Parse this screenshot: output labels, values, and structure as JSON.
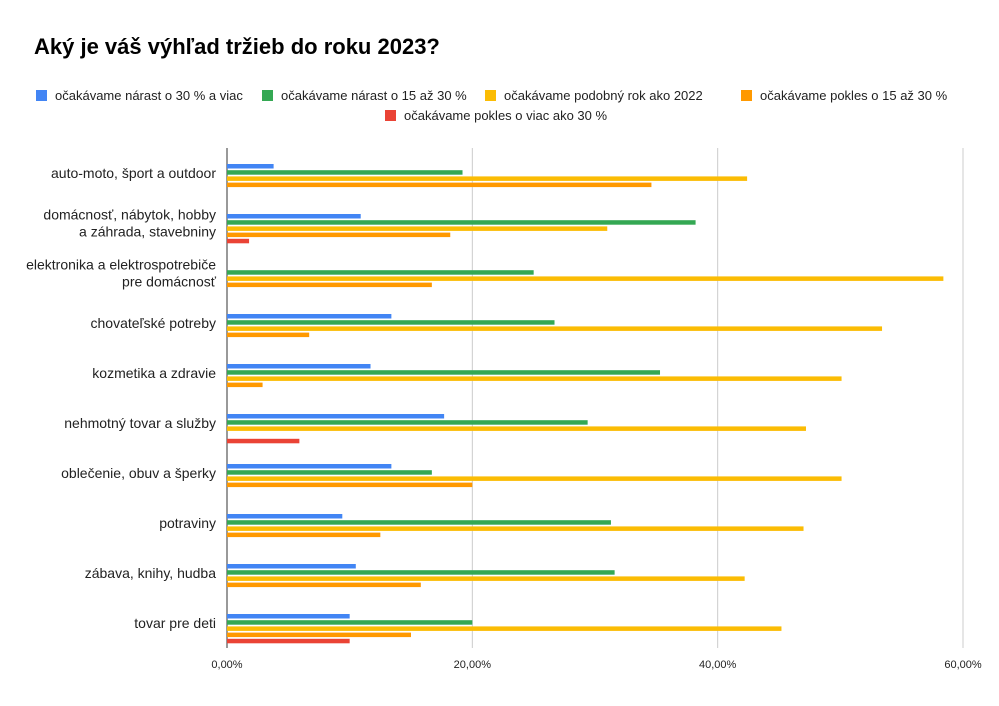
{
  "chart_data": {
    "type": "bar",
    "orientation": "horizontal",
    "title": "Aký je váš výhľad tržieb do roku 2023?",
    "xlabel": "",
    "ylabel": "",
    "xlim": [
      0,
      60
    ],
    "x_ticks": [
      0,
      20,
      40,
      60
    ],
    "x_tick_labels": [
      "0,00%",
      "20,00%",
      "40,00%",
      "60,00%"
    ],
    "grid": true,
    "legend_placement": "top",
    "categories": [
      [
        "auto-moto, šport a outdoor"
      ],
      [
        "domácnosť, nábytok, hobby",
        "a záhrada, stavebniny"
      ],
      [
        "elektronika a elektrospotrebiče",
        "pre domácnosť"
      ],
      [
        "chovateľské potreby"
      ],
      [
        "kozmetika a zdravie"
      ],
      [
        "nehmotný tovar a služby"
      ],
      [
        "oblečenie, obuv a šperky"
      ],
      [
        "potraviny"
      ],
      [
        "zábava, knihy, hudba"
      ],
      [
        "tovar pre deti"
      ]
    ],
    "series": [
      {
        "name": "očakávame nárast o 30 % a viac",
        "color": "#4285f4",
        "values": [
          3.8,
          10.9,
          null,
          13.4,
          11.7,
          17.7,
          13.4,
          9.4,
          10.5,
          10.0
        ]
      },
      {
        "name": "očakávame nárast o 15 až 30 %",
        "color": "#34a853",
        "values": [
          19.2,
          38.2,
          25.0,
          26.7,
          35.3,
          29.4,
          16.7,
          31.3,
          31.6,
          20.0
        ]
      },
      {
        "name": "očakávame podobný rok ako 2022",
        "color": "#fbbc04",
        "values": [
          42.4,
          31.0,
          58.4,
          53.4,
          50.1,
          47.2,
          50.1,
          47.0,
          42.2,
          45.2
        ]
      },
      {
        "name": "očakávame pokles o 15 až 30 %",
        "color": "#ff9900",
        "values": [
          34.6,
          18.2,
          16.7,
          6.7,
          2.9,
          null,
          20.0,
          12.5,
          15.8,
          15.0
        ]
      },
      {
        "name": "očakávame pokles o viac ako 30 %",
        "color": "#ea4335",
        "values": [
          null,
          1.8,
          null,
          null,
          null,
          5.9,
          null,
          null,
          null,
          10.0
        ]
      }
    ]
  }
}
